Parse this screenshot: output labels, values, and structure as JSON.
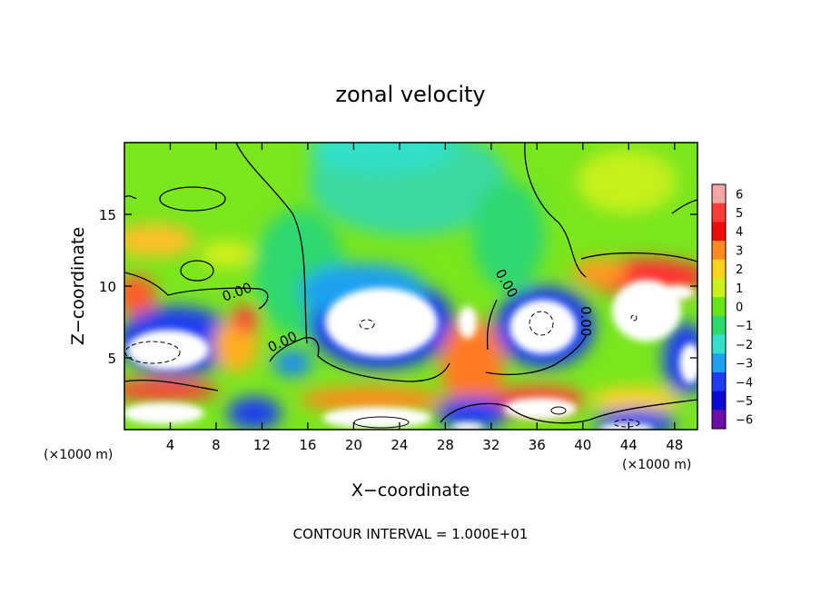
{
  "chart_data": {
    "type": "heatmap",
    "title": "zonal velocity",
    "xlabel": "X−coordinate",
    "ylabel": "Z−coordinate",
    "x_unit_left": "(×1000 m)",
    "x_unit_right": "(×1000 m)",
    "xlim": [
      0,
      50
    ],
    "ylim": [
      0,
      20
    ],
    "xticks": [
      4,
      8,
      12,
      16,
      20,
      24,
      28,
      32,
      36,
      40,
      44,
      48
    ],
    "yticks": [
      5,
      10,
      15
    ],
    "colorbar": {
      "levels": [
        6,
        5,
        4,
        3,
        2,
        1,
        0,
        -1,
        -2,
        -3,
        -4,
        -5,
        -6
      ],
      "labels": [
        "6",
        "5",
        "4",
        "3",
        "2",
        "1",
        "0",
        "−1",
        "−2",
        "−3",
        "−4",
        "−5",
        "−6"
      ],
      "colors": [
        "#f2a6a6",
        "#ff3b3b",
        "#f00c0c",
        "#ff8a1f",
        "#ffd21a",
        "#ccf01a",
        "#66e61a",
        "#2fd86e",
        "#33e0c8",
        "#1fa0f0",
        "#1f3cf0",
        "#0a0ad0",
        "#6a10a8"
      ]
    },
    "contour_labels": [
      "0.00",
      "0.00",
      "0.00",
      "0.00"
    ],
    "footer": "CONTOUR INTERVAL = 1.000E+01"
  }
}
